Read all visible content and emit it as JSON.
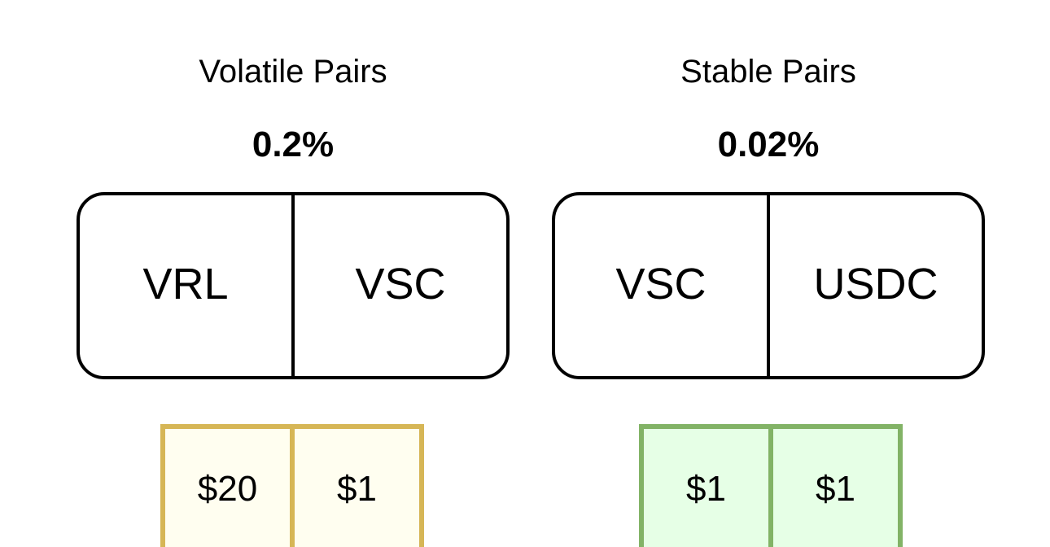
{
  "groups": [
    {
      "title": "Volatile Pairs",
      "fee": "0.2%",
      "tokens": [
        "VRL",
        "VSC"
      ],
      "prices": [
        "$20",
        "$1"
      ],
      "fill_color": "#fffef0",
      "border_color": "#d6b656"
    },
    {
      "title": "Stable Pairs",
      "fee": "0.02%",
      "tokens": [
        "VSC",
        "USDC"
      ],
      "prices": [
        "$1",
        "$1"
      ],
      "fill_color": "#e6ffe6",
      "border_color": "#82b366"
    }
  ]
}
